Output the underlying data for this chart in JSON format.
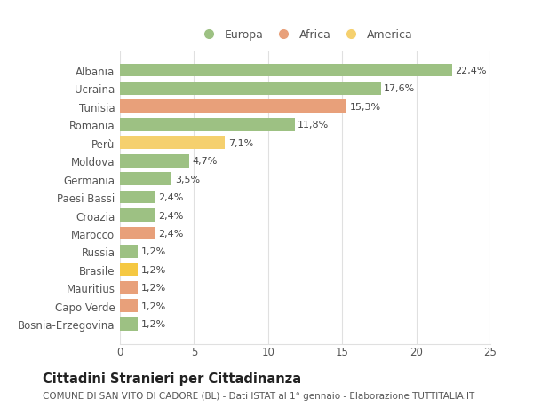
{
  "categories": [
    "Bosnia-Erzegovina",
    "Capo Verde",
    "Mauritius",
    "Brasile",
    "Russia",
    "Marocco",
    "Croazia",
    "Paesi Bassi",
    "Germania",
    "Moldova",
    "Perù",
    "Romania",
    "Tunisia",
    "Ucraina",
    "Albania"
  ],
  "values": [
    1.2,
    1.2,
    1.2,
    1.2,
    1.2,
    2.4,
    2.4,
    2.4,
    3.5,
    4.7,
    7.1,
    11.8,
    15.3,
    17.6,
    22.4
  ],
  "labels": [
    "1,2%",
    "1,2%",
    "1,2%",
    "1,2%",
    "1,2%",
    "2,4%",
    "2,4%",
    "2,4%",
    "3,5%",
    "4,7%",
    "7,1%",
    "11,8%",
    "15,3%",
    "17,6%",
    "22,4%"
  ],
  "colors": [
    "#9dc183",
    "#e8a07a",
    "#e8a07a",
    "#f5c842",
    "#9dc183",
    "#e8a07a",
    "#9dc183",
    "#9dc183",
    "#9dc183",
    "#9dc183",
    "#f5d06e",
    "#9dc183",
    "#e8a07a",
    "#9dc183",
    "#9dc183"
  ],
  "legend_labels": [
    "Europa",
    "Africa",
    "America"
  ],
  "legend_colors": [
    "#9dc183",
    "#e8a07a",
    "#f5d06e"
  ],
  "title": "Cittadini Stranieri per Cittadinanza",
  "subtitle": "COMUNE DI SAN VITO DI CADORE (BL) - Dati ISTAT al 1° gennaio - Elaborazione TUTTITALIA.IT",
  "xlim": [
    0,
    25
  ],
  "xticks": [
    0,
    5,
    10,
    15,
    20,
    25
  ],
  "bg_color": "#ffffff",
  "grid_color": "#e0e0e0",
  "bar_height": 0.72,
  "label_fontsize": 8.0,
  "tick_fontsize": 8.5,
  "title_fontsize": 10.5,
  "subtitle_fontsize": 7.5
}
